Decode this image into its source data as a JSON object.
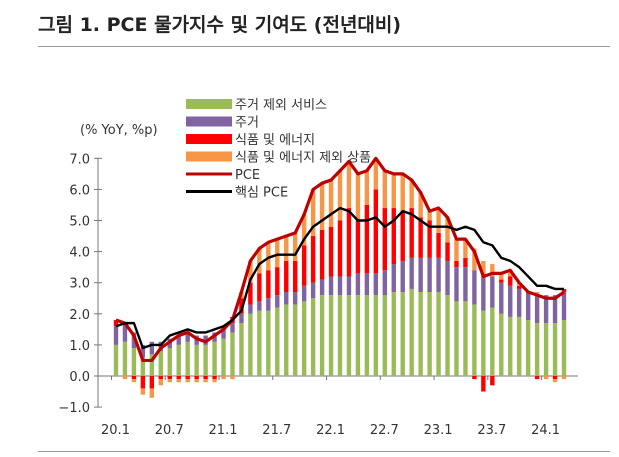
{
  "title": "그림 1. PCE 물가지수 및 기여도 (전년대비)",
  "chart_data": {
    "type": "bar",
    "title": "그림 1. PCE 물가지수 및 기여도 (전년대비)",
    "ylabel": "(% YoY, %p)",
    "ylim": [
      -1.0,
      7.0
    ],
    "yticks": [
      "7.0",
      "6.0",
      "5.0",
      "4.0",
      "3.0",
      "2.0",
      "1.0",
      "0.0",
      "−1.0"
    ],
    "xticks": [
      "20.1",
      "20.7",
      "21.1",
      "21.7",
      "22.1",
      "22.7",
      "23.1",
      "23.7",
      "24.1"
    ],
    "x_start": "2020-01",
    "x_end": "2024-03",
    "legend_placement": "top",
    "series": [
      {
        "name": "주거 제외 서비스",
        "kind": "bar",
        "color": "#9bbb59",
        "values": [
          1.0,
          1.1,
          0.9,
          0.6,
          0.7,
          0.8,
          0.9,
          1.0,
          1.1,
          1.0,
          1.0,
          1.1,
          1.2,
          1.4,
          1.7,
          2.0,
          2.1,
          2.1,
          2.2,
          2.3,
          2.3,
          2.4,
          2.5,
          2.6,
          2.6,
          2.6,
          2.6,
          2.6,
          2.6,
          2.6,
          2.6,
          2.7,
          2.7,
          2.8,
          2.7,
          2.7,
          2.7,
          2.6,
          2.4,
          2.4,
          2.3,
          2.1,
          2.2,
          2.0,
          1.9,
          1.9,
          1.8,
          1.7,
          1.7,
          1.7,
          1.8
        ]
      },
      {
        "name": "주거",
        "kind": "bar",
        "color": "#8064a2",
        "values": [
          0.6,
          0.6,
          0.5,
          0.4,
          0.4,
          0.3,
          0.3,
          0.3,
          0.3,
          0.3,
          0.3,
          0.3,
          0.3,
          0.3,
          0.3,
          0.3,
          0.3,
          0.4,
          0.4,
          0.4,
          0.4,
          0.5,
          0.5,
          0.5,
          0.6,
          0.6,
          0.6,
          0.7,
          0.7,
          0.7,
          0.8,
          0.9,
          1.0,
          1.0,
          1.1,
          1.1,
          1.1,
          1.1,
          1.1,
          1.1,
          1.1,
          1.1,
          1.0,
          1.0,
          1.0,
          0.9,
          0.9,
          0.9,
          0.9,
          0.9,
          0.9
        ]
      },
      {
        "name": "식품 및 에너지",
        "kind": "bar",
        "color": "#ff0000",
        "values": [
          0.2,
          0.0,
          -0.1,
          -0.4,
          -0.4,
          -0.1,
          -0.1,
          -0.1,
          -0.1,
          -0.1,
          -0.1,
          -0.1,
          0.1,
          0.2,
          0.5,
          0.7,
          0.9,
          0.9,
          0.9,
          1.0,
          1.0,
          1.3,
          1.5,
          1.6,
          1.6,
          1.8,
          2.2,
          1.7,
          2.2,
          2.7,
          2.0,
          1.8,
          1.6,
          1.6,
          1.3,
          1.2,
          0.8,
          0.6,
          0.2,
          0.3,
          -0.1,
          -0.5,
          -0.3,
          0.1,
          0.3,
          0.1,
          0.0,
          -0.1,
          0.0,
          -0.1,
          0.1
        ]
      },
      {
        "name": "식품 및 에너지 제외 상품",
        "kind": "bar",
        "color": "#f79646",
        "values": [
          0.0,
          -0.1,
          -0.1,
          -0.2,
          -0.3,
          -0.2,
          -0.1,
          -0.1,
          -0.1,
          -0.1,
          -0.1,
          -0.1,
          -0.1,
          -0.1,
          0.2,
          0.7,
          0.8,
          0.9,
          0.9,
          0.8,
          0.9,
          1.0,
          1.5,
          1.5,
          1.5,
          1.6,
          1.5,
          1.5,
          1.1,
          1.0,
          1.2,
          1.1,
          1.2,
          0.9,
          0.8,
          0.3,
          0.8,
          0.8,
          0.7,
          0.6,
          0.7,
          0.5,
          0.4,
          0.2,
          0.2,
          0.1,
          0.0,
          0.1,
          -0.1,
          -0.1,
          -0.1
        ]
      },
      {
        "name": "PCE",
        "kind": "line",
        "color": "#c00000",
        "values": [
          1.8,
          1.7,
          1.3,
          0.5,
          0.5,
          0.9,
          1.1,
          1.3,
          1.4,
          1.2,
          1.1,
          1.3,
          1.5,
          1.8,
          2.7,
          3.7,
          4.1,
          4.3,
          4.4,
          4.5,
          4.6,
          5.2,
          6.0,
          6.2,
          6.3,
          6.6,
          6.9,
          6.5,
          6.6,
          7.0,
          6.6,
          6.5,
          6.5,
          6.3,
          5.9,
          5.3,
          5.4,
          5.1,
          4.4,
          4.4,
          4.0,
          3.2,
          3.3,
          3.3,
          3.4,
          3.0,
          2.7,
          2.6,
          2.5,
          2.5,
          2.7
        ]
      },
      {
        "name": "핵심 PCE",
        "kind": "line",
        "color": "#000000",
        "values": [
          1.6,
          1.7,
          1.7,
          0.9,
          1.0,
          1.0,
          1.3,
          1.4,
          1.5,
          1.4,
          1.4,
          1.5,
          1.6,
          1.8,
          2.1,
          3.1,
          3.6,
          3.8,
          3.9,
          3.9,
          3.9,
          4.4,
          4.8,
          5.0,
          5.2,
          5.4,
          5.3,
          5.0,
          5.0,
          5.1,
          4.8,
          5.0,
          5.3,
          5.2,
          5.0,
          4.8,
          4.8,
          4.8,
          4.7,
          4.8,
          4.7,
          4.3,
          4.2,
          3.8,
          3.7,
          3.5,
          3.2,
          2.9,
          2.9,
          2.8,
          2.8
        ]
      }
    ]
  }
}
